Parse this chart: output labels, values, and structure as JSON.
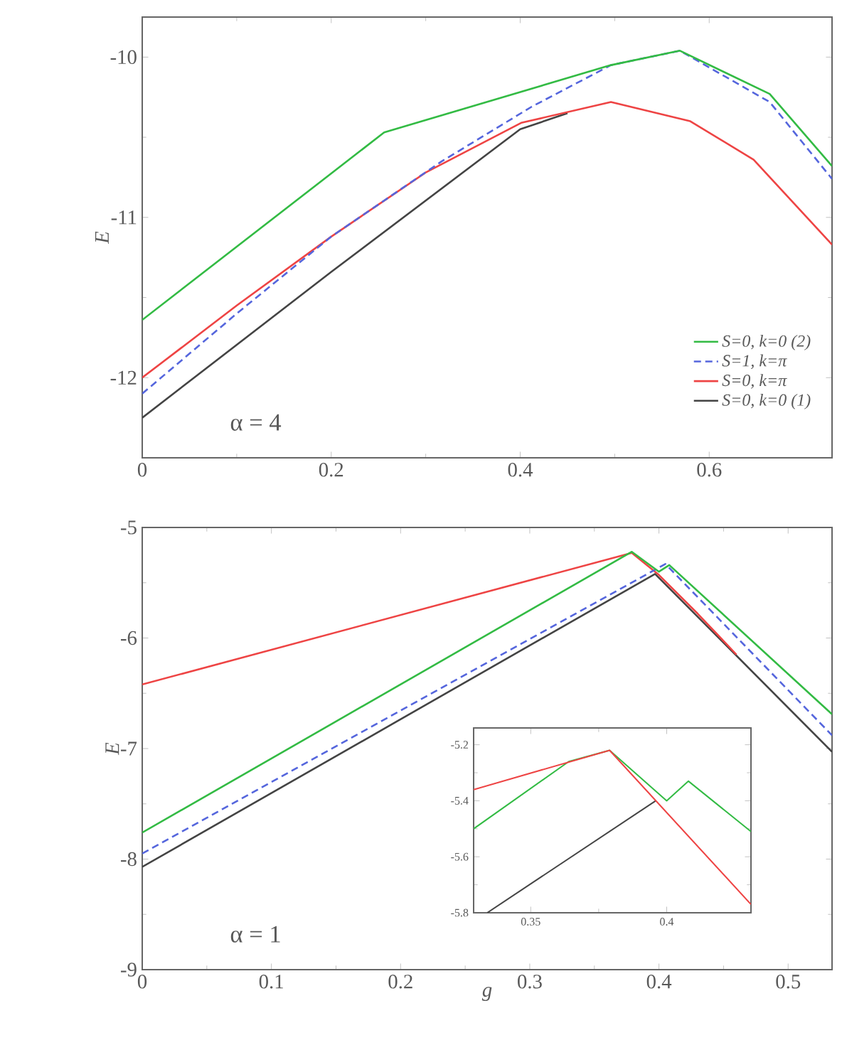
{
  "chart_data": [
    {
      "type": "line",
      "ylabel": "E",
      "xlim": [
        0,
        0.73
      ],
      "ylim": [
        -12.5,
        -9.75
      ],
      "xticks": [
        0,
        0.2,
        0.4,
        0.6
      ],
      "yticks": [
        -12,
        -11,
        -10
      ],
      "legend": "bottom right",
      "marker": "none",
      "annotations": [
        "α = 4"
      ],
      "series": [
        {
          "name": "S=0, k=0 (2)",
          "color": "#33bb44",
          "x": [
            0,
            0.256,
            0.496,
            0.569,
            0.664,
            0.73
          ],
          "values": [
            -11.64,
            -10.47,
            -10.05,
            -9.96,
            -10.23,
            -10.68
          ]
        },
        {
          "name": "S=1, k=π",
          "color": "#5566dd",
          "line_style": "dashed",
          "x": [
            0,
            0.1,
            0.2,
            0.317,
            0.412,
            0.496,
            0.569,
            0.664,
            0.73
          ],
          "values": [
            -12.1,
            -11.6,
            -11.12,
            -10.65,
            -10.31,
            -10.05,
            -9.96,
            -10.28,
            -10.76
          ]
        },
        {
          "name": "S=0, k=π",
          "color": "#ee4444",
          "x": [
            0,
            0.1,
            0.2,
            0.3,
            0.401,
            0.496,
            0.58,
            0.647,
            0.73
          ],
          "values": [
            -12.0,
            -11.55,
            -11.12,
            -10.72,
            -10.41,
            -10.28,
            -10.4,
            -10.64,
            -11.17
          ]
        },
        {
          "name": "S=0, k=0 (1)",
          "color": "#444444",
          "x": [
            0,
            0.2,
            0.4,
            0.45
          ],
          "values": [
            -12.25,
            -11.34,
            -10.45,
            -10.35
          ]
        }
      ]
    },
    {
      "type": "line",
      "ylabel": "E",
      "xlabel": "g",
      "xlim": [
        0,
        0.534
      ],
      "ylim": [
        -9,
        -5
      ],
      "xticks": [
        0,
        0.1,
        0.2,
        0.3,
        0.4,
        0.5
      ],
      "yticks": [
        -9,
        -8,
        -7,
        -6,
        -5
      ],
      "marker": "none",
      "annotations": [
        "α = 1"
      ],
      "series": [
        {
          "color": "#444444",
          "x": [
            0,
            0.397,
            0.534
          ],
          "values": [
            -8.07,
            -5.42,
            -7.03
          ]
        },
        {
          "color": "#ee4444",
          "x": [
            0,
            0.379,
            0.4,
            0.43,
            0.46
          ],
          "values": [
            -6.42,
            -5.23,
            -5.43,
            -5.78,
            -6.15
          ]
        },
        {
          "color": "#5566dd",
          "line_style": "dashed",
          "x": [
            0,
            0.405,
            0.534
          ],
          "values": [
            -7.95,
            -5.33,
            -6.88
          ]
        },
        {
          "color": "#33bb44",
          "x": [
            0,
            0.379,
            0.4,
            0.408,
            0.534
          ],
          "values": [
            -7.76,
            -5.22,
            -5.4,
            -5.34,
            -6.69
          ]
        }
      ]
    },
    {
      "type": "line",
      "xlim": [
        0.329,
        0.431
      ],
      "ylim": [
        -5.8,
        -5.14
      ],
      "xticks": [
        0.35,
        0.4
      ],
      "yticks": [
        -5.8,
        -5.6,
        -5.4,
        -5.2
      ],
      "marker": "none",
      "series": [
        {
          "color": "#444444",
          "x": [
            0.334,
            0.396
          ],
          "values": [
            -5.8,
            -5.4
          ]
        },
        {
          "color": "#33bb44",
          "x": [
            0.329,
            0.364,
            0.379,
            0.4,
            0.408,
            0.431
          ],
          "values": [
            -5.5,
            -5.26,
            -5.22,
            -5.4,
            -5.33,
            -5.51
          ]
        },
        {
          "color": "#ee4444",
          "x": [
            0.329,
            0.379,
            0.431
          ],
          "values": [
            -5.36,
            -5.22,
            -5.77
          ]
        }
      ]
    }
  ]
}
